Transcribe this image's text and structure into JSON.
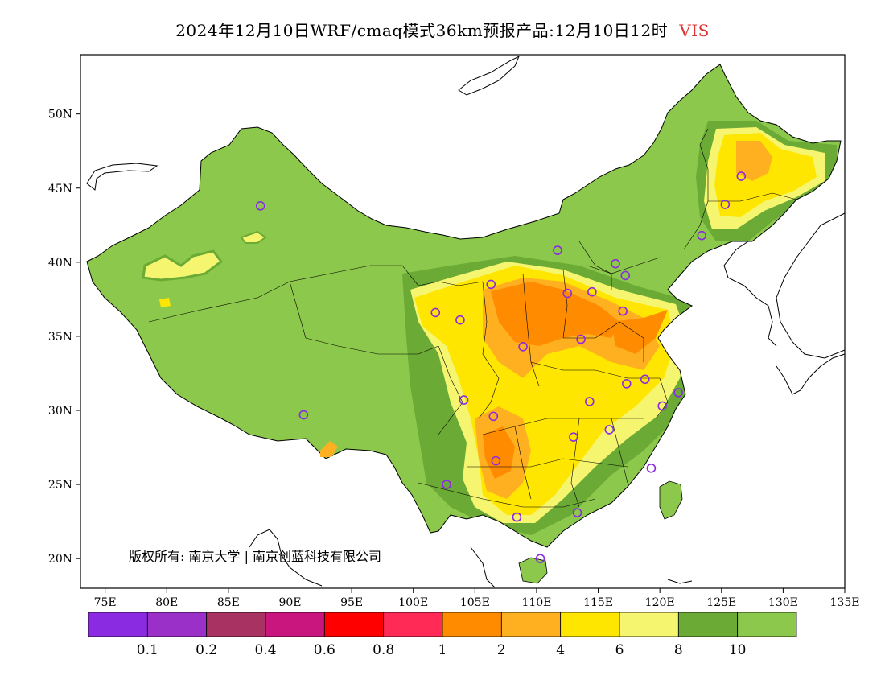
{
  "title": {
    "text": "2024年12月10日WRF/cmaq模式36km预报产品:12月10日12时",
    "variable": "VIS",
    "variable_color": "#e03030"
  },
  "map": {
    "lat_ticks": [
      "50N",
      "45N",
      "40N",
      "35N",
      "30N",
      "25N",
      "20N"
    ],
    "lon_ticks": [
      "75E",
      "80E",
      "85E",
      "90E",
      "95E",
      "100E",
      "105E",
      "110E",
      "115E",
      "120E",
      "125E",
      "130E",
      "135E"
    ],
    "copyright": "版权所有: 南京大学 | 南京创蓝科技有限公司",
    "stations": [
      {
        "lon": 87.6,
        "lat": 43.8
      },
      {
        "lon": 91.1,
        "lat": 29.7
      },
      {
        "lon": 101.8,
        "lat": 36.6
      },
      {
        "lon": 103.8,
        "lat": 36.1
      },
      {
        "lon": 106.3,
        "lat": 38.5
      },
      {
        "lon": 111.7,
        "lat": 40.8
      },
      {
        "lon": 116.4,
        "lat": 39.9
      },
      {
        "lon": 117.2,
        "lat": 39.1
      },
      {
        "lon": 114.5,
        "lat": 38.0
      },
      {
        "lon": 112.5,
        "lat": 37.9
      },
      {
        "lon": 117.0,
        "lat": 36.7
      },
      {
        "lon": 108.9,
        "lat": 34.3
      },
      {
        "lon": 113.6,
        "lat": 34.8
      },
      {
        "lon": 117.3,
        "lat": 31.8
      },
      {
        "lon": 118.8,
        "lat": 32.1
      },
      {
        "lon": 121.5,
        "lat": 31.2
      },
      {
        "lon": 120.2,
        "lat": 30.3
      },
      {
        "lon": 114.3,
        "lat": 30.6
      },
      {
        "lon": 104.1,
        "lat": 30.7
      },
      {
        "lon": 106.5,
        "lat": 29.6
      },
      {
        "lon": 113.0,
        "lat": 28.2
      },
      {
        "lon": 115.9,
        "lat": 28.7
      },
      {
        "lon": 106.7,
        "lat": 26.6
      },
      {
        "lon": 102.7,
        "lat": 25.0
      },
      {
        "lon": 119.3,
        "lat": 26.1
      },
      {
        "lon": 113.3,
        "lat": 23.1
      },
      {
        "lon": 108.4,
        "lat": 22.8
      },
      {
        "lon": 110.3,
        "lat": 20.0
      },
      {
        "lon": 123.4,
        "lat": 41.8
      },
      {
        "lon": 125.3,
        "lat": 43.9
      },
      {
        "lon": 126.6,
        "lat": 45.8
      }
    ]
  },
  "legend": {
    "colors": [
      "#8a2be2",
      "#9b30c8",
      "#a83262",
      "#c8167e",
      "#ff0000",
      "#ff2a55",
      "#ff8c00",
      "#ffb020",
      "#ffe600",
      "#f5f570",
      "#6aaa35",
      "#8cc84b"
    ],
    "labels": [
      "0.1",
      "0.2",
      "0.4",
      "0.6",
      "0.8",
      "1",
      "2",
      "4",
      "6",
      "8",
      "10"
    ]
  },
  "colors": {
    "land_green": "#8cc84b",
    "dark_green": "#6aaa35",
    "light_yellow": "#f5f570",
    "yellow": "#ffe600",
    "light_orange": "#ffb020",
    "orange": "#ff8c00",
    "station": "#8a2be2"
  }
}
